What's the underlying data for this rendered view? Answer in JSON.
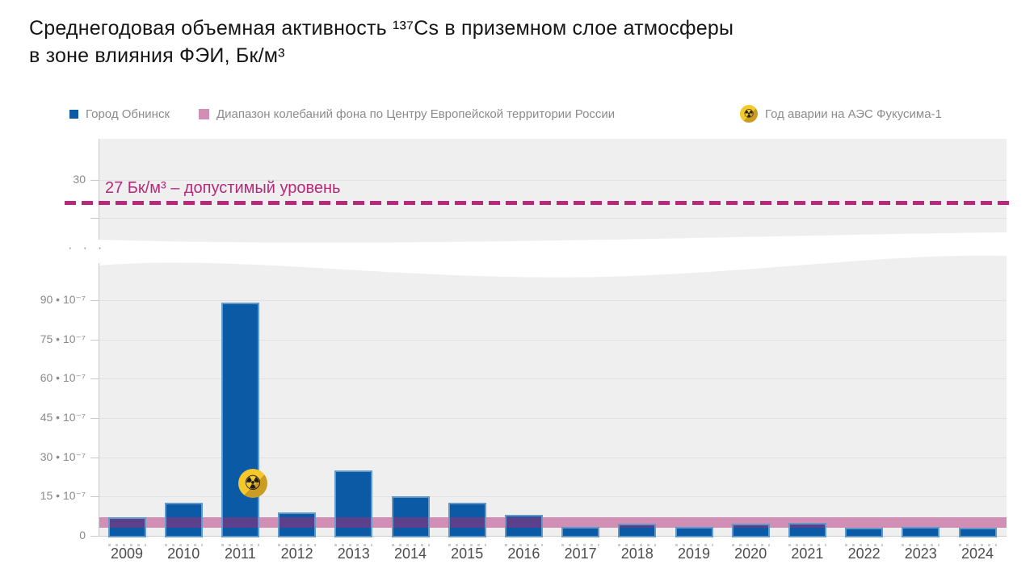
{
  "title": "Среднегодовая объемная активность ¹³⁷Cs в приземном слое атмосферы\nв зоне влияния ФЭИ, Бк/м³",
  "legend": {
    "obninsk": "Город Обнинск",
    "background_range": "Диапазон колебаний фона по Центру Европейской территории России",
    "fukushima": "Год аварии на АЭС Фукусима-1"
  },
  "icons": {
    "radiation": "☢"
  },
  "limit_label": "27 Бк/м³ – допустимый уровень",
  "axis_break_dots": "· · ·",
  "colors": {
    "bar_blue": "#0b5aa5",
    "bar_border": "#6398c8",
    "band_pink": "#d28fb6",
    "overlap_purple": "#5b418c",
    "limit_magenta": "#b62a7c",
    "radiation_yellow": "#f5c82b",
    "radiation_shadow": "#cb9c22",
    "panel_gray": "#efefef"
  },
  "chart_data": {
    "type": "bar",
    "title": "Среднегодовая объемная активность ¹³⁷Cs в приземном слое атмосферы в зоне влияния ФЭИ, Бк/м³",
    "unit": "Бк/м³",
    "lower_scale_factor": "10⁻⁷",
    "broken_y_axis": true,
    "grid": true,
    "legend_position": "top",
    "categories": [
      "2009",
      "2010",
      "2011",
      "2012",
      "2013",
      "2014",
      "2015",
      "2016",
      "2017",
      "2018",
      "2019",
      "2020",
      "2021",
      "2022",
      "2023",
      "2024"
    ],
    "series": [
      {
        "name": "Город Обнинск",
        "unit": "×10⁻⁷ Бк/м³",
        "values": [
          7,
          12.5,
          89,
          9,
          25,
          15,
          12.5,
          8,
          3.5,
          4.5,
          3.5,
          4.5,
          5,
          3,
          3.5,
          3
        ]
      }
    ],
    "background_band": {
      "name": "Диапазон колебаний фона по Центру Европейской территории России",
      "min": 3,
      "max": 7,
      "unit": "×10⁻⁷ Бк/м³"
    },
    "limit_line": {
      "value": 27,
      "unit": "Бк/м³",
      "label": "27 Бк/м³ – допустимый уровень"
    },
    "fukushima_marker": {
      "year": "2011",
      "label": "Год аварии на АЭС Фукусима-1"
    },
    "y_axis_lower": {
      "ticks": [
        "90 • 10⁻⁷",
        "75 • 10⁻⁷",
        "60 • 10⁻⁷",
        "45 • 10⁻⁷",
        "30 • 10⁻⁷",
        "15 • 10⁻⁷",
        "0"
      ],
      "values": [
        90,
        75,
        60,
        45,
        30,
        15,
        0
      ],
      "range": [
        0,
        95
      ]
    },
    "y_axis_upper": {
      "ticks": [
        "30"
      ],
      "values": [
        30
      ],
      "unlabeled_tick_values": [
        25
      ],
      "range": [
        22,
        35
      ]
    }
  }
}
